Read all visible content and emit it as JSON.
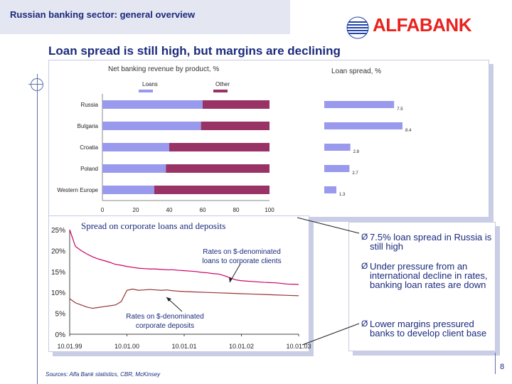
{
  "header": {
    "title": "Russian banking sector: general overview"
  },
  "logo": {
    "text": "ALFABANK"
  },
  "slide": {
    "subtitle": "Loan spread is still high, but margins are declining"
  },
  "chart_data": [
    {
      "type": "bar",
      "stacked": true,
      "orientation": "horizontal",
      "title": "Net banking revenue by product, %",
      "categories": [
        "Russia",
        "Bulgaria",
        "Croatia",
        "Poland",
        "Western Europe"
      ],
      "series": [
        {
          "name": "Loans",
          "values": [
            60,
            59,
            40,
            38,
            31
          ],
          "color": "#9999ee"
        },
        {
          "name": "Other",
          "values": [
            40,
            41,
            60,
            62,
            69
          ],
          "color": "#993366"
        }
      ],
      "xlim": [
        0,
        100
      ],
      "xticks": [
        "0",
        "20",
        "40",
        "60",
        "80",
        "100"
      ],
      "legend_position": "top"
    },
    {
      "type": "bar",
      "orientation": "horizontal",
      "title": "Loan spread, %",
      "categories": [
        "Russia",
        "Bulgaria",
        "Croatia",
        "Poland",
        "Western Europe"
      ],
      "values": [
        7.5,
        8.4,
        2.8,
        2.7,
        1.3
      ],
      "data_labels": [
        "7.5",
        "8.4",
        "2.8",
        "2.7",
        "1.3"
      ],
      "color": "#9999ee"
    },
    {
      "type": "line",
      "title": "Spread on corporate loans and deposits",
      "yticks": [
        "25%",
        "20%",
        "15%",
        "10%",
        "5%",
        "0%"
      ],
      "ylim": [
        0,
        25
      ],
      "xticks": [
        "10.01.99",
        "10.01.00",
        "10.01.01",
        "10.01.02",
        "10.01.03"
      ],
      "series": [
        {
          "name": "Rates on $-denominated loans to corporate clients",
          "color": "#cc0066",
          "x": [
            0,
            0.1,
            0.2,
            0.3,
            0.4,
            0.5,
            0.6,
            0.7,
            0.8,
            0.9,
            1.0,
            1.1,
            1.2,
            1.3,
            1.4,
            1.5,
            1.6,
            1.7,
            1.8,
            1.9,
            2.0,
            2.1,
            2.2,
            2.3,
            2.4,
            2.5,
            2.6,
            2.7,
            2.8,
            2.9,
            3.0,
            3.2,
            3.4,
            3.6,
            3.8,
            4.0
          ],
          "y": [
            25,
            21,
            20,
            19.2,
            18.5,
            18,
            17.6,
            17.2,
            16.7,
            16.5,
            16.2,
            16,
            15.8,
            15.7,
            15.6,
            15.6,
            15.5,
            15.4,
            15.4,
            15.3,
            15.2,
            15.1,
            15.0,
            14.8,
            14.7,
            14.5,
            14.4,
            14.0,
            13.5,
            13.0,
            12.8,
            12.6,
            12.4,
            12.3,
            12.0,
            11.9
          ]
        },
        {
          "name": "Rates on $-denominated corporate deposits",
          "color": "#993333",
          "x": [
            0,
            0.1,
            0.2,
            0.3,
            0.4,
            0.5,
            0.6,
            0.7,
            0.8,
            0.9,
            1.0,
            1.1,
            1.2,
            1.3,
            1.4,
            1.5,
            1.6,
            1.7,
            1.8,
            1.9,
            2.0,
            2.2,
            2.4,
            2.6,
            2.8,
            3.0,
            3.2,
            3.4,
            3.6,
            3.8,
            4.0
          ],
          "y": [
            8.5,
            7.5,
            7.0,
            6.5,
            6.2,
            6.4,
            6.6,
            6.8,
            7.0,
            7.8,
            10.5,
            10.8,
            10.5,
            10.6,
            10.7,
            10.6,
            10.5,
            10.6,
            10.4,
            10.3,
            10.2,
            10.1,
            10.0,
            9.9,
            9.8,
            9.7,
            9.6,
            9.5,
            9.4,
            9.3,
            9.2
          ]
        }
      ],
      "annotations": [
        "Rates on $-denominated loans to corporate clients",
        "Rates on $-denominated corporate deposits"
      ]
    }
  ],
  "bullets": [
    {
      "arrow": "Ø",
      "text": "7.5% loan spread in Russia is still high"
    },
    {
      "arrow": "Ø",
      "text": "Under pressure from an international decline in rates, banking loan rates are down"
    },
    {
      "arrow": "Ø",
      "text": "Lower margins pressured banks to develop client base"
    }
  ],
  "footer": {
    "sources": "Sources: Alfa Bank statistics, CBR, McKinsey",
    "page_number": "8"
  }
}
